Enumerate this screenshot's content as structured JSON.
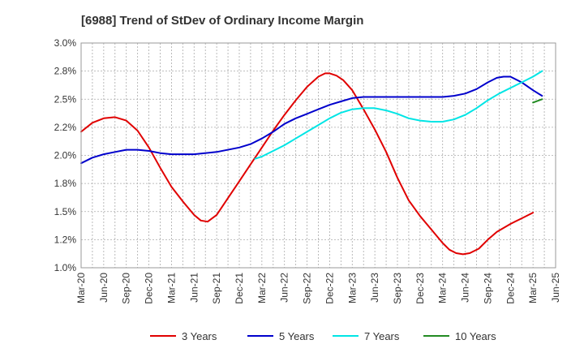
{
  "chart_data": {
    "type": "line",
    "title": "[6988]  Trend of StDev of Ordinary Income Margin",
    "xlabel": "",
    "ylabel": "",
    "x_ticks": [
      "Mar-20",
      "Jun-20",
      "Sep-20",
      "Dec-20",
      "Mar-21",
      "Jun-21",
      "Sep-21",
      "Dec-21",
      "Mar-22",
      "Jun-22",
      "Sep-22",
      "Dec-22",
      "Mar-23",
      "Jun-23",
      "Sep-23",
      "Dec-23",
      "Mar-24",
      "Jun-24",
      "Sep-24",
      "Dec-24",
      "Mar-25",
      "Jun-25"
    ],
    "y_ticks": [
      "1.0%",
      "1.2%",
      "1.5%",
      "1.8%",
      "2.0%",
      "2.2%",
      "2.5%",
      "2.8%",
      "3.0%"
    ],
    "ylim": [
      1.0,
      3.0
    ],
    "grid": true,
    "legend_position": "bottom",
    "series": [
      {
        "name": "3 Years",
        "color": "#e00000",
        "points": [
          [
            0,
            2.21
          ],
          [
            0.5,
            2.29
          ],
          [
            1,
            2.33
          ],
          [
            1.5,
            2.34
          ],
          [
            2,
            2.31
          ],
          [
            2.5,
            2.22
          ],
          [
            3,
            2.07
          ],
          [
            3.5,
            1.89
          ],
          [
            4,
            1.72
          ],
          [
            4.5,
            1.59
          ],
          [
            5,
            1.47
          ],
          [
            5.3,
            1.42
          ],
          [
            5.6,
            1.41
          ],
          [
            6,
            1.47
          ],
          [
            6.5,
            1.62
          ],
          [
            7,
            1.77
          ],
          [
            7.5,
            1.92
          ],
          [
            8,
            2.07
          ],
          [
            8.5,
            2.22
          ],
          [
            9,
            2.36
          ],
          [
            9.5,
            2.49
          ],
          [
            10,
            2.61
          ],
          [
            10.5,
            2.7
          ],
          [
            10.8,
            2.73
          ],
          [
            11,
            2.73
          ],
          [
            11.3,
            2.71
          ],
          [
            11.6,
            2.67
          ],
          [
            12,
            2.58
          ],
          [
            12.5,
            2.41
          ],
          [
            13,
            2.23
          ],
          [
            13.5,
            2.03
          ],
          [
            14,
            1.8
          ],
          [
            14.5,
            1.6
          ],
          [
            15,
            1.46
          ],
          [
            15.5,
            1.34
          ],
          [
            16,
            1.22
          ],
          [
            16.3,
            1.16
          ],
          [
            16.6,
            1.13
          ],
          [
            16.9,
            1.12
          ],
          [
            17.2,
            1.13
          ],
          [
            17.6,
            1.17
          ],
          [
            18,
            1.25
          ],
          [
            18.4,
            1.32
          ],
          [
            19,
            1.39
          ],
          [
            19.5,
            1.44
          ],
          [
            20,
            1.49
          ]
        ]
      },
      {
        "name": "5 Years",
        "color": "#0000cc",
        "points": [
          [
            0,
            1.93
          ],
          [
            0.5,
            1.98
          ],
          [
            1,
            2.01
          ],
          [
            1.5,
            2.03
          ],
          [
            2,
            2.05
          ],
          [
            2.5,
            2.05
          ],
          [
            3,
            2.04
          ],
          [
            3.5,
            2.02
          ],
          [
            4,
            2.01
          ],
          [
            5,
            2.01
          ],
          [
            6,
            2.03
          ],
          [
            7,
            2.07
          ],
          [
            7.5,
            2.1
          ],
          [
            8,
            2.15
          ],
          [
            8.5,
            2.21
          ],
          [
            9,
            2.28
          ],
          [
            9.5,
            2.33
          ],
          [
            10,
            2.37
          ],
          [
            10.5,
            2.41
          ],
          [
            11,
            2.45
          ],
          [
            11.5,
            2.48
          ],
          [
            12,
            2.51
          ],
          [
            12.5,
            2.52
          ],
          [
            13,
            2.52
          ],
          [
            14,
            2.52
          ],
          [
            15,
            2.52
          ],
          [
            16,
            2.52
          ],
          [
            16.5,
            2.53
          ],
          [
            17,
            2.55
          ],
          [
            17.5,
            2.59
          ],
          [
            18,
            2.65
          ],
          [
            18.4,
            2.69
          ],
          [
            18.7,
            2.7
          ],
          [
            19,
            2.7
          ],
          [
            19.5,
            2.65
          ],
          [
            20,
            2.58
          ],
          [
            20.4,
            2.53
          ]
        ]
      },
      {
        "name": "7 Years",
        "color": "#00e5e5",
        "points": [
          [
            7.7,
            1.97
          ],
          [
            8,
            1.99
          ],
          [
            8.5,
            2.04
          ],
          [
            9,
            2.09
          ],
          [
            9.5,
            2.15
          ],
          [
            10,
            2.21
          ],
          [
            10.5,
            2.27
          ],
          [
            11,
            2.33
          ],
          [
            11.5,
            2.38
          ],
          [
            12,
            2.41
          ],
          [
            12.5,
            2.42
          ],
          [
            13,
            2.42
          ],
          [
            13.5,
            2.4
          ],
          [
            14,
            2.37
          ],
          [
            14.5,
            2.33
          ],
          [
            15,
            2.31
          ],
          [
            15.5,
            2.3
          ],
          [
            16,
            2.3
          ],
          [
            16.5,
            2.32
          ],
          [
            17,
            2.36
          ],
          [
            17.5,
            2.42
          ],
          [
            18,
            2.49
          ],
          [
            18.5,
            2.55
          ],
          [
            19,
            2.6
          ],
          [
            19.5,
            2.65
          ],
          [
            20,
            2.7
          ],
          [
            20.4,
            2.75
          ]
        ]
      },
      {
        "name": "10 Years",
        "color": "#228b22",
        "points": [
          [
            20,
            2.47
          ],
          [
            20.4,
            2.5
          ]
        ]
      }
    ]
  }
}
